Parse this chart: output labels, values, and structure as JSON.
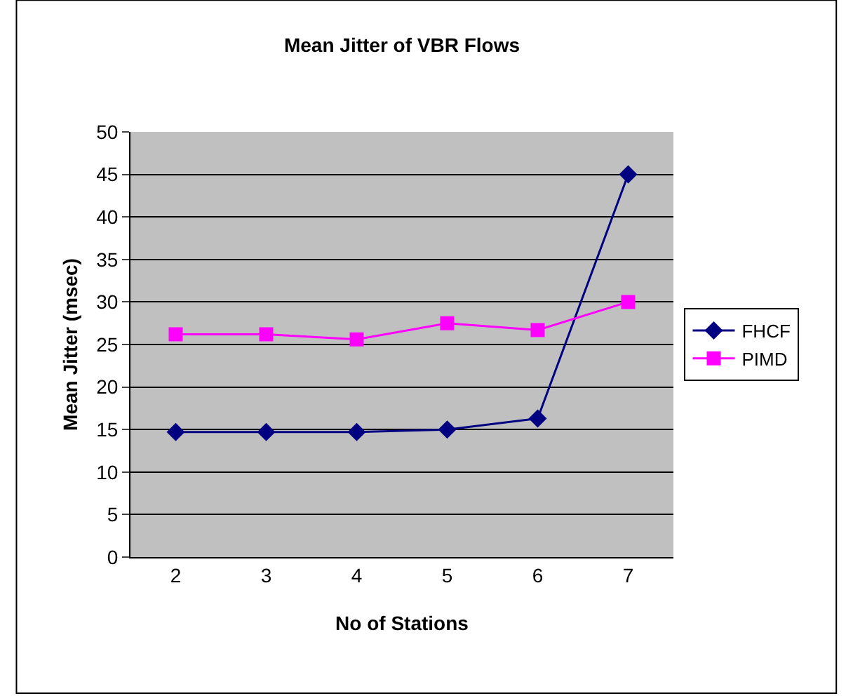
{
  "chart_data": {
    "type": "line",
    "title": "Mean Jitter of VBR Flows",
    "xlabel": "No of Stations",
    "ylabel": "Mean Jitter (msec)",
    "categories": [
      "2",
      "3",
      "4",
      "5",
      "6",
      "7"
    ],
    "series": [
      {
        "name": "FHCF",
        "color": "#000080",
        "marker": "diamond",
        "values": [
          14.7,
          14.7,
          14.7,
          15,
          16.3,
          45
        ]
      },
      {
        "name": "PIMD",
        "color": "#ff00ff",
        "marker": "square",
        "values": [
          26.2,
          26.2,
          25.6,
          27.5,
          26.7,
          30
        ]
      }
    ],
    "ylim": [
      0,
      50
    ],
    "yticks": [
      0,
      5,
      10,
      15,
      20,
      25,
      30,
      35,
      40,
      45,
      50
    ],
    "grid": "y",
    "legend": "right",
    "line_style": "solid"
  }
}
